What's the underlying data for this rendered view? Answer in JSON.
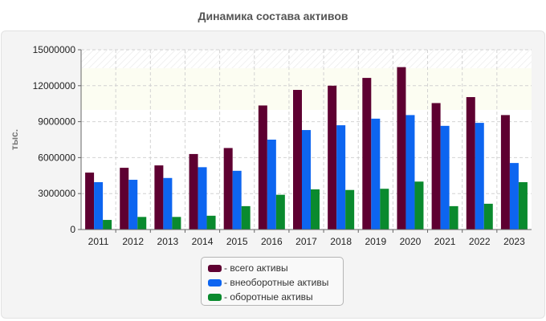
{
  "chart_data": {
    "type": "bar",
    "title": "Динамика состава активов",
    "ylabel": "тыс.",
    "xlabel": "",
    "categories": [
      "2011",
      "2012",
      "2013",
      "2014",
      "2015",
      "2016",
      "2017",
      "2018",
      "2019",
      "2020",
      "2021",
      "2022",
      "2023"
    ],
    "ylim": [
      0,
      15000000
    ],
    "yticks": [
      0,
      3000000,
      6000000,
      9000000,
      12000000,
      15000000
    ],
    "ytick_labels": [
      "0",
      "3000000",
      "6000000",
      "9000000",
      "12000000",
      "15000000"
    ],
    "grid": true,
    "legend_position": "bottom",
    "series": [
      {
        "name": "- всего активы",
        "color": "#5e0031",
        "values": [
          4750000,
          5150000,
          5350000,
          6300000,
          6800000,
          10350000,
          11650000,
          12000000,
          12650000,
          13550000,
          10550000,
          11050000,
          9550000
        ]
      },
      {
        "name": "- внеоборотные активы",
        "color": "#0d65f0",
        "values": [
          3950000,
          4150000,
          4300000,
          5200000,
          4900000,
          7500000,
          8300000,
          8700000,
          9250000,
          9550000,
          8650000,
          8900000,
          5550000
        ]
      },
      {
        "name": "- оборотные активы",
        "color": "#0a8a2e",
        "values": [
          800000,
          1050000,
          1050000,
          1150000,
          1950000,
          2900000,
          3350000,
          3300000,
          3400000,
          4000000,
          1950000,
          2150000,
          3950000
        ]
      }
    ]
  }
}
